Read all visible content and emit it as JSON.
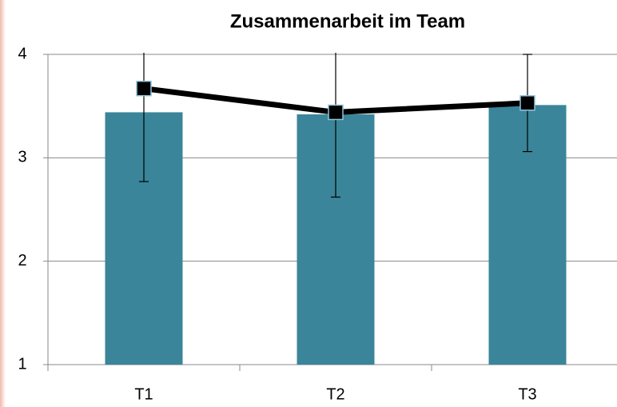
{
  "chart_data": {
    "type": "bar",
    "title": "Zusammenarbeit im Team",
    "categories": [
      "T1",
      "T2",
      "T3"
    ],
    "series": [
      {
        "type": "bar",
        "color": "#3a8599",
        "values": [
          3.44,
          3.42,
          3.51
        ]
      },
      {
        "type": "line",
        "color": "#000000",
        "values": [
          3.67,
          3.44,
          3.53
        ],
        "errors": [
          0.9,
          0.82,
          0.47
        ]
      }
    ],
    "ylim": [
      1,
      4
    ],
    "yticks": [
      1,
      2,
      3,
      4
    ],
    "grid": true
  }
}
